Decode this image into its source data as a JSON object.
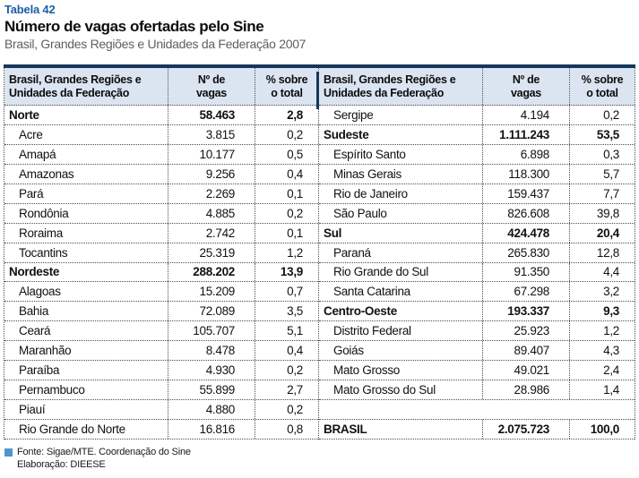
{
  "page": {
    "table_label": "Tabela 42",
    "title": "Número de vagas ofertadas pelo Sine",
    "subtitle": "Brasil, Grandes Regiões e Unidades da Federação 2007"
  },
  "colors": {
    "navy_border": "#17365d",
    "header_background": "#dbe4f1",
    "title_blue": "#1a5fa8",
    "source_square_blue": "#4e96cc"
  },
  "header": {
    "col1": "Brasil, Grandes Regiões e\nUnidades da Federação",
    "col2": "Nº de\nvagas",
    "col3": "% sobre\no total"
  },
  "left_table": {
    "rows": [
      {
        "name": "Norte",
        "vagas": "58.463",
        "pct": "2,8",
        "bold": true,
        "indent": false
      },
      {
        "name": "Acre",
        "vagas": "3.815",
        "pct": "0,2",
        "bold": false,
        "indent": true
      },
      {
        "name": "Amapá",
        "vagas": "10.177",
        "pct": "0,5",
        "bold": false,
        "indent": true
      },
      {
        "name": "Amazonas",
        "vagas": "9.256",
        "pct": "0,4",
        "bold": false,
        "indent": true
      },
      {
        "name": "Pará",
        "vagas": "2.269",
        "pct": "0,1",
        "bold": false,
        "indent": true
      },
      {
        "name": "Rondônia",
        "vagas": "4.885",
        "pct": "0,2",
        "bold": false,
        "indent": true
      },
      {
        "name": "Roraima",
        "vagas": "2.742",
        "pct": "0,1",
        "bold": false,
        "indent": true
      },
      {
        "name": "Tocantins",
        "vagas": "25.319",
        "pct": "1,2",
        "bold": false,
        "indent": true
      },
      {
        "name": "Nordeste",
        "vagas": "288.202",
        "pct": "13,9",
        "bold": true,
        "indent": false
      },
      {
        "name": "Alagoas",
        "vagas": "15.209",
        "pct": "0,7",
        "bold": false,
        "indent": true
      },
      {
        "name": "Bahia",
        "vagas": "72.089",
        "pct": "3,5",
        "bold": false,
        "indent": true
      },
      {
        "name": "Ceará",
        "vagas": "105.707",
        "pct": "5,1",
        "bold": false,
        "indent": true
      },
      {
        "name": "Maranhão",
        "vagas": "8.478",
        "pct": "0,4",
        "bold": false,
        "indent": true
      },
      {
        "name": "Paraíba",
        "vagas": "4.930",
        "pct": "0,2",
        "bold": false,
        "indent": true
      },
      {
        "name": "Pernambuco",
        "vagas": "55.899",
        "pct": "2,7",
        "bold": false,
        "indent": true
      },
      {
        "name": "Piauí",
        "vagas": "4.880",
        "pct": "0,2",
        "bold": false,
        "indent": true
      },
      {
        "name": "Rio Grande do Norte",
        "vagas": "16.816",
        "pct": "0,8",
        "bold": false,
        "indent": true
      }
    ]
  },
  "right_table": {
    "rows": [
      {
        "name": "Sergipe",
        "vagas": "4.194",
        "pct": "0,2",
        "bold": false,
        "indent": true
      },
      {
        "name": "Sudeste",
        "vagas": "1.111.243",
        "pct": "53,5",
        "bold": true,
        "indent": false
      },
      {
        "name": "Espírito Santo",
        "vagas": "6.898",
        "pct": "0,3",
        "bold": false,
        "indent": true
      },
      {
        "name": "Minas Gerais",
        "vagas": "118.300",
        "pct": "5,7",
        "bold": false,
        "indent": true
      },
      {
        "name": "Rio de Janeiro",
        "vagas": "159.437",
        "pct": "7,7",
        "bold": false,
        "indent": true
      },
      {
        "name": "São Paulo",
        "vagas": "826.608",
        "pct": "39,8",
        "bold": false,
        "indent": true
      },
      {
        "name": "Sul",
        "vagas": "424.478",
        "pct": "20,4",
        "bold": true,
        "indent": false
      },
      {
        "name": "Paraná",
        "vagas": "265.830",
        "pct": "12,8",
        "bold": false,
        "indent": true
      },
      {
        "name": "Rio Grande do Sul",
        "vagas": "91.350",
        "pct": "4,4",
        "bold": false,
        "indent": true
      },
      {
        "name": "Santa Catarina",
        "vagas": "67.298",
        "pct": "3,2",
        "bold": false,
        "indent": true
      },
      {
        "name": "Centro-Oeste",
        "vagas": "193.337",
        "pct": "9,3",
        "bold": true,
        "indent": false
      },
      {
        "name": "Distrito Federal",
        "vagas": "25.923",
        "pct": "1,2",
        "bold": false,
        "indent": true
      },
      {
        "name": "Goiás",
        "vagas": "89.407",
        "pct": "4,3",
        "bold": false,
        "indent": true
      },
      {
        "name": "Mato Grosso",
        "vagas": "49.021",
        "pct": "2,4",
        "bold": false,
        "indent": true
      },
      {
        "name": "Mato Grosso do Sul",
        "vagas": "28.986",
        "pct": "1,4",
        "bold": false,
        "indent": true
      },
      {
        "name": "",
        "vagas": "",
        "pct": "",
        "bold": false,
        "indent": false,
        "spacer": true
      },
      {
        "name": "BRASIL",
        "vagas": "2.075.723",
        "pct": "100,0",
        "bold": true,
        "indent": false
      }
    ]
  },
  "footer": {
    "source": "Fonte: Sigae/MTE. Coordenação do Sine",
    "elaboration": "Elaboração: DIEESE"
  }
}
